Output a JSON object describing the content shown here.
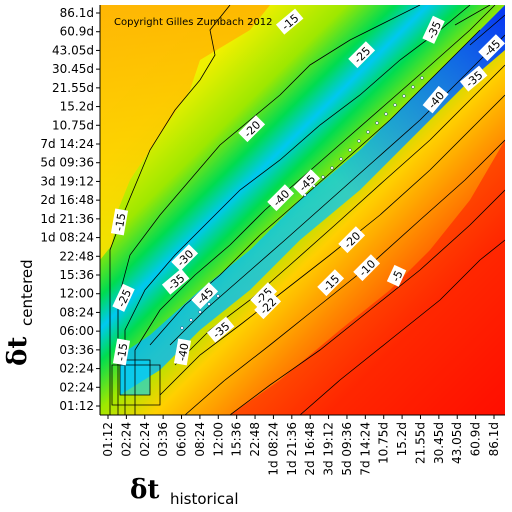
{
  "chart_data": {
    "type": "heatmap",
    "copyright": "Copyright Gilles Zumbach 2012",
    "xlabel": {
      "symbol": "δt",
      "subscript": "historical"
    },
    "ylabel": {
      "symbol": "δt",
      "subscript": "centered"
    },
    "x_ticks": [
      "01:12",
      "02:24",
      "02:24",
      "03:36",
      "06:00",
      "08:24",
      "12:00",
      "15:36",
      "22:48",
      "1d 08:24",
      "1d 21:36",
      "2d 16:48",
      "3d 19:12",
      "5d 09:36",
      "7d 14:24",
      "10.75d",
      "15.2d",
      "21.55d",
      "30.45d",
      "43.05d",
      "60.9d",
      "86.1d"
    ],
    "y_ticks": [
      "01:12",
      "02:24",
      "02:24",
      "03:36",
      "06:00",
      "08:24",
      "12:00",
      "15:36",
      "22:48",
      "1d 08:24",
      "1d 21:36",
      "2d 16:48",
      "3d 19:12",
      "5d 09:36",
      "7d 14:24",
      "10.75d",
      "15.2d",
      "21.55d",
      "30.45d",
      "43.05d",
      "60.9d",
      "86.1d"
    ],
    "contour_labels": [
      "-15",
      "-35",
      "-25",
      "-45",
      "-35",
      "-20",
      "-40",
      "-40",
      "-45",
      "-15",
      "-20",
      "-30",
      "-35",
      "-25",
      "-45",
      "-25",
      "-22",
      "-15",
      "-10",
      "-5",
      "-35",
      "-40",
      "-15"
    ],
    "colormap": [
      "#0a38ff",
      "#00a8ff",
      "#00e8a0",
      "#28e400",
      "#c0f000",
      "#ffff00",
      "#ffb800",
      "#ff5000",
      "#ff0000"
    ],
    "value_range": [
      -50,
      0
    ]
  }
}
